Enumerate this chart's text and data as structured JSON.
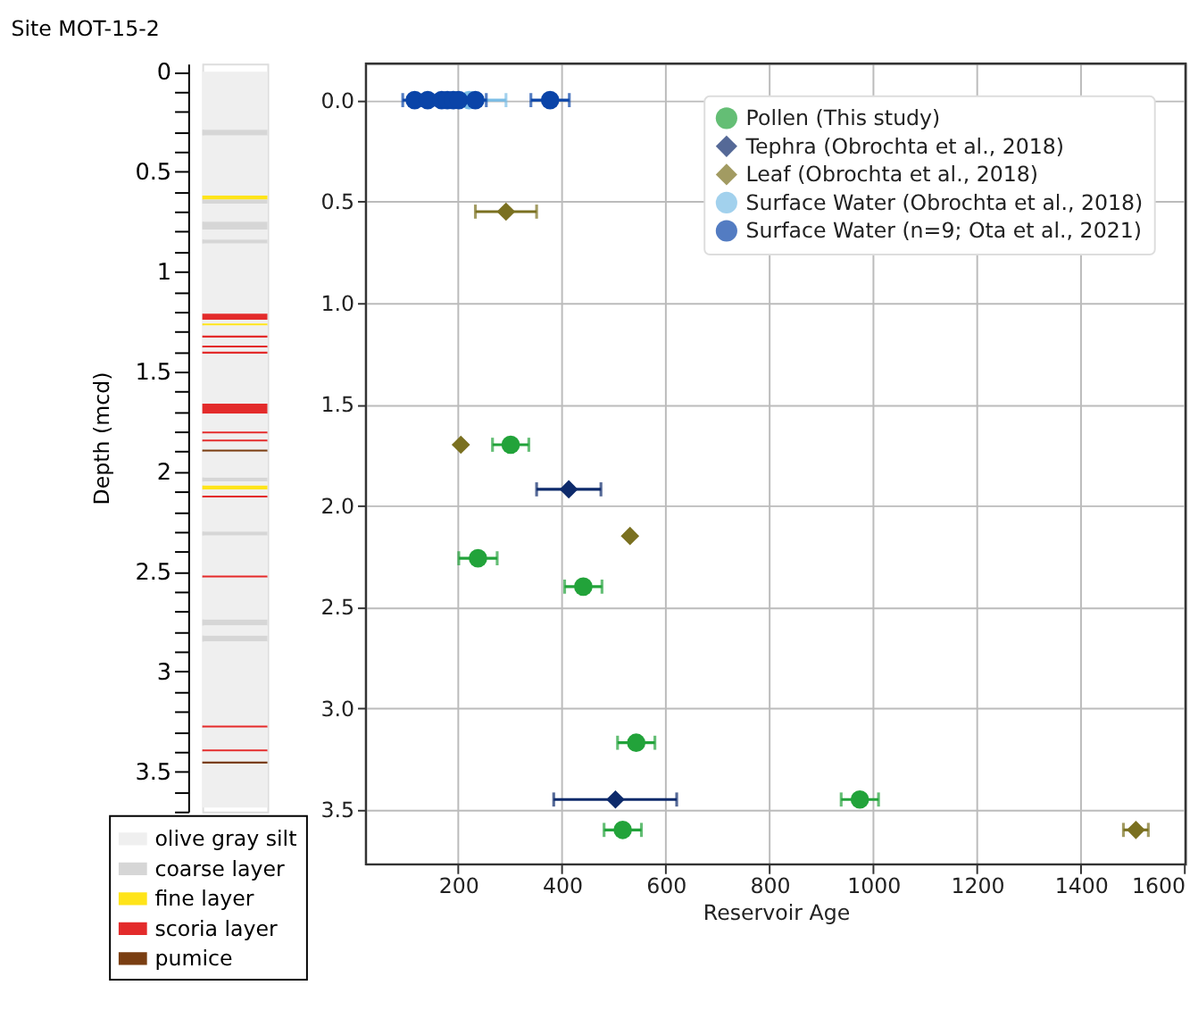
{
  "chart_data": [
    {
      "type": "bar",
      "stacked": true,
      "title": "Site MOT-15-2",
      "ylabel": "Depth (mcd)",
      "ylim": [
        3.7,
        -0.04
      ],
      "tick_labels": "y",
      "legend": "bottom",
      "categories": [
        null
      ],
      "yticks": [
        0,
        {
          "value": 0.1,
          "label": null
        },
        {
          "value": 0.2,
          "label": null
        },
        {
          "value": 0.3,
          "label": null
        },
        {
          "value": 0.4,
          "label": null
        },
        0.5,
        {
          "value": 0.6,
          "label": null
        },
        {
          "value": 0.7,
          "label": null
        },
        {
          "value": 0.8,
          "label": null
        },
        {
          "value": 0.9,
          "label": null
        },
        1,
        {
          "value": 1.1,
          "label": null
        },
        {
          "value": 1.2,
          "label": null
        },
        {
          "value": 1.3,
          "label": null
        },
        {
          "value": 1.4,
          "label": null
        },
        1.5,
        {
          "value": 1.6,
          "label": null
        },
        {
          "value": 1.7,
          "label": null
        },
        {
          "value": 1.8,
          "label": null
        },
        {
          "value": 1.9,
          "label": null
        },
        2,
        {
          "value": 2.1,
          "label": null
        },
        {
          "value": 2.2,
          "label": null
        },
        {
          "value": 2.3,
          "label": null
        },
        {
          "value": 2.4,
          "label": null
        },
        2.5,
        {
          "value": 2.6,
          "label": null
        },
        {
          "value": 2.7,
          "label": null
        },
        {
          "value": 2.8,
          "label": null
        },
        {
          "value": 2.9,
          "label": null
        },
        3,
        {
          "value": 3.1,
          "label": null
        },
        {
          "value": 3.2,
          "label": null
        },
        {
          "value": 3.3,
          "label": null
        },
        {
          "value": 3.4,
          "label": null
        },
        3.5,
        {
          "value": 3.6,
          "label": null
        },
        {
          "value": 3.7,
          "label": null
        }
      ],
      "series": [
        {
          "name": "olive gray silt",
          "color": "#efefef",
          "values": [
            0.29
          ]
        },
        {
          "name": "coarse layer",
          "color": "#d6d6d6",
          "values": [
            0.03
          ]
        },
        {
          "color": "#efefef",
          "values": [
            0.3
          ]
        },
        {
          "name": "fine layer",
          "color": "#ffe419",
          "values": [
            0.02
          ]
        },
        {
          "color": "#d6d6d6",
          "values": [
            0.02
          ]
        },
        {
          "color": "#efefef",
          "values": [
            0.09
          ]
        },
        {
          "color": "#d6d6d6",
          "values": [
            0.04
          ]
        },
        {
          "color": "#efefef",
          "values": [
            0.05
          ]
        },
        {
          "color": "#d6d6d6",
          "values": [
            0.02
          ]
        },
        {
          "color": "#efefef",
          "values": [
            0.35
          ]
        },
        {
          "name": "scoria layer",
          "color": "#e32b2b",
          "values": [
            0.03
          ]
        },
        {
          "color": "#efefef",
          "values": [
            0.02
          ]
        },
        {
          "color": "#ffe419",
          "values": [
            0.01
          ]
        },
        {
          "color": "#efefef",
          "values": [
            0.05
          ]
        },
        {
          "color": "#e32b2b",
          "values": [
            0.01
          ]
        },
        {
          "color": "#efefef",
          "values": [
            0.04
          ]
        },
        {
          "color": "#e32b2b",
          "values": [
            0.01
          ]
        },
        {
          "color": "#efefef",
          "values": [
            0.02
          ]
        },
        {
          "color": "#e32b2b",
          "values": [
            0.01
          ]
        },
        {
          "color": "#efefef",
          "values": [
            0.25
          ]
        },
        {
          "color": "#e32b2b",
          "values": [
            0.05
          ]
        },
        {
          "color": "#efefef",
          "values": [
            0.09
          ]
        },
        {
          "color": "#e32b2b",
          "values": [
            0.01
          ]
        },
        {
          "color": "#efefef",
          "values": [
            0.03
          ]
        },
        {
          "color": "#e32b2b",
          "values": [
            0.01
          ]
        },
        {
          "color": "#efefef",
          "values": [
            0.04
          ]
        },
        {
          "name": "pumice",
          "color": "#7a3e12",
          "values": [
            0.01
          ]
        },
        {
          "color": "#efefef",
          "values": [
            0.13
          ]
        },
        {
          "color": "#d6d6d6",
          "values": [
            0.02
          ]
        },
        {
          "color": "#efefef",
          "values": [
            0.02
          ]
        },
        {
          "color": "#ffe419",
          "values": [
            0.02
          ]
        },
        {
          "color": "#efefef",
          "values": [
            0.03
          ]
        },
        {
          "color": "#e32b2b",
          "values": [
            0.01
          ]
        },
        {
          "color": "#efefef",
          "values": [
            0.17
          ]
        },
        {
          "color": "#d6d6d6",
          "values": [
            0.02
          ]
        },
        {
          "color": "#efefef",
          "values": [
            0.2
          ]
        },
        {
          "color": "#e32b2b",
          "values": [
            0.01
          ]
        },
        {
          "color": "#efefef",
          "values": [
            0.21
          ]
        },
        {
          "color": "#d6d6d6",
          "values": [
            0.03
          ]
        },
        {
          "color": "#efefef",
          "values": [
            0.05
          ]
        },
        {
          "color": "#d6d6d6",
          "values": [
            0.03
          ]
        },
        {
          "color": "#efefef",
          "values": [
            0.42
          ]
        },
        {
          "color": "#e32b2b",
          "values": [
            0.01
          ]
        },
        {
          "color": "#efefef",
          "values": [
            0.11
          ]
        },
        {
          "color": "#e32b2b",
          "values": [
            0.01
          ]
        },
        {
          "color": "#efefef",
          "values": [
            0.05
          ]
        },
        {
          "color": "#7a3e12",
          "values": [
            0.01
          ]
        },
        {
          "color": "#efefef",
          "values": [
            0.22
          ]
        }
      ]
    },
    {
      "type": "scatter",
      "xlabel": "Reservoir Age",
      "xlim": [
        22,
        1602
      ],
      "xticks": [
        200,
        400,
        600,
        800,
        1000,
        1200,
        1400,
        1600
      ],
      "ylim": [
        3.77,
        -0.18
      ],
      "yticks": [
        {
          "value": 0,
          "label": "0.0"
        },
        0.5,
        {
          "value": 1,
          "label": "1.0"
        },
        1.5,
        {
          "value": 2,
          "label": "2.0"
        },
        2.5,
        {
          "value": 3,
          "label": "3.0"
        },
        3.5
      ],
      "grid": true,
      "legend": "top right",
      "series": [
        {
          "name": "Pollen (This study)",
          "color": "#22a33a",
          "marker": "circle",
          "x": [
            301,
            238,
            441,
            543,
            974,
            517
          ],
          "values": [
            1.7,
            2.26,
            2.4,
            3.17,
            3.45,
            3.6
          ],
          "xerrors": [
            35,
            37,
            36,
            36,
            36,
            36
          ]
        },
        {
          "name": "Tephra (Obrochta et al., 2018)",
          "color": "#0d2a6b",
          "marker": "diamond",
          "x": [
            413,
            503
          ],
          "values": [
            1.92,
            3.45
          ],
          "xerrors": [
            62,
            [
              384,
              621
            ]
          ]
        },
        {
          "name": "Leaf (Obrochta et al., 2018)",
          "color": "#7a7020",
          "marker": "diamond",
          "x": [
            292,
            205,
            531,
            1506
          ],
          "values": [
            0.55,
            1.7,
            2.15,
            3.6
          ],
          "xerrors": [
            59,
            null,
            null,
            24
          ]
        },
        {
          "name": "Surface Water (Obrochta et al., 2018)",
          "color": "#7abde6",
          "marker": "circle",
          "x": [
            221
          ],
          "values": [
            0
          ],
          "xerrors": [
            71
          ]
        },
        {
          "name": "Surface Water (n=9; Ota et al., 2021)",
          "color": "#0a44a8",
          "marker": "circle",
          "x": [
            116,
            118,
            141,
            168,
            179,
            190,
            201,
            233,
            377
          ],
          "values": [
            0,
            null,
            0,
            0,
            0,
            0,
            0,
            0,
            0
          ],
          "xerrors": [
            23,
            null,
            null,
            null,
            null,
            null,
            null,
            21,
            37
          ]
        }
      ]
    }
  ]
}
